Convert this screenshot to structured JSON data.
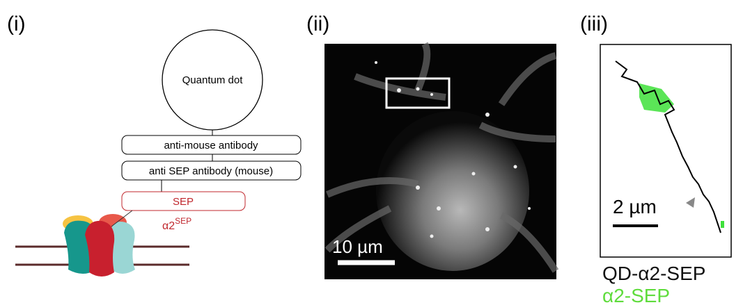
{
  "panels": [
    {
      "label": "(i)"
    },
    {
      "label": "(ii)"
    },
    {
      "label": "(iii)"
    }
  ],
  "diagram": {
    "quantum_dot": "Quantum dot",
    "boxes": [
      "anti-mouse antibody",
      "anti SEP antibody (mouse)",
      "SEP"
    ],
    "receptor": {
      "label": "α2",
      "superscript": "SEP"
    }
  },
  "micrograph": {
    "scale_bar": "10 µm"
  },
  "trajectory": {
    "scale_bar": "2 µm",
    "legend": [
      "QD-α2-SEP",
      "α2-SEP"
    ]
  }
}
